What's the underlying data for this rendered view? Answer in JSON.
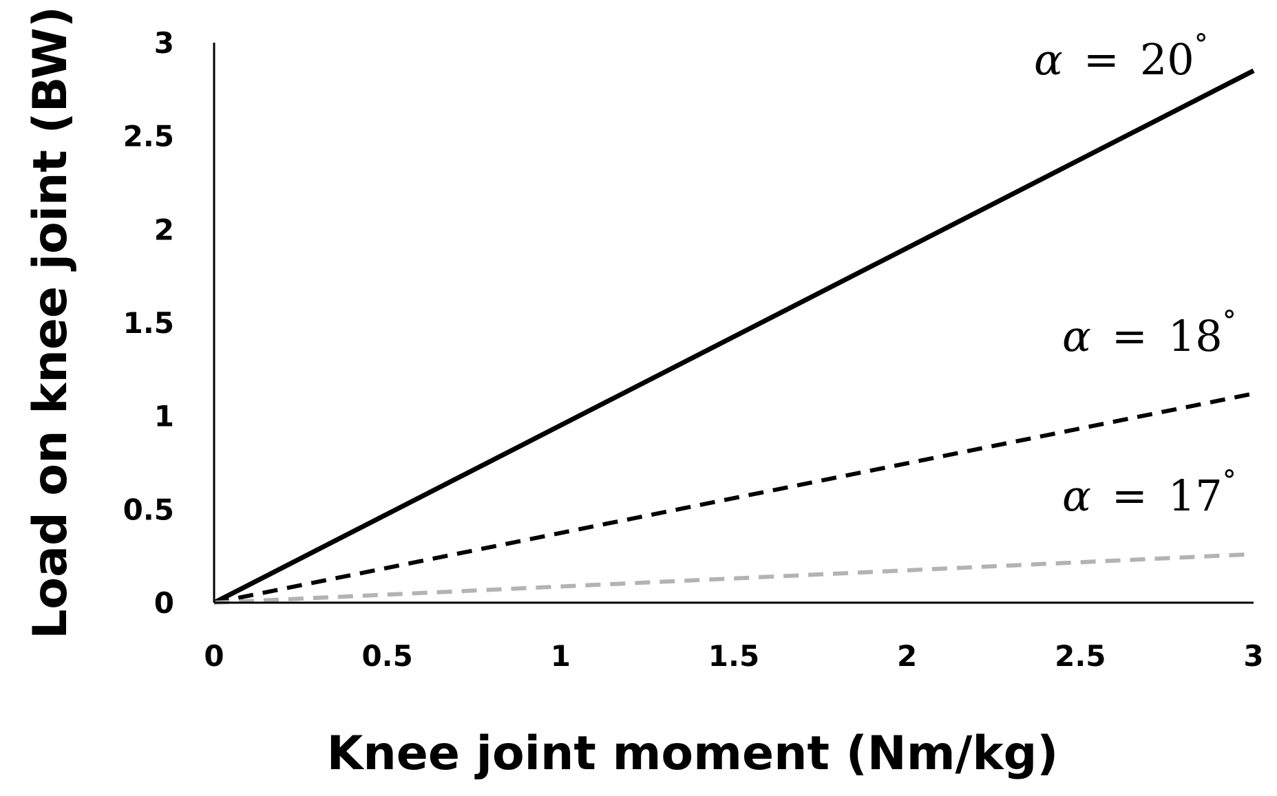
{
  "chart_data": {
    "type": "line",
    "title": "",
    "xlabel": "Knee joint moment (Nm/kg)",
    "ylabel": "Load on knee joint (BW)",
    "xlim": [
      0,
      3
    ],
    "ylim": [
      0,
      3
    ],
    "x_ticks": [
      "0",
      "0.5",
      "1",
      "1.5",
      "2",
      "2.5",
      "3"
    ],
    "y_ticks": [
      "0",
      "0.5",
      "1",
      "1.5",
      "2",
      "2.5",
      "3"
    ],
    "grid": false,
    "legend": "inline labels at right end of each line",
    "series": [
      {
        "name": "α = 20°",
        "label_parts": {
          "symbol": "α",
          "eq": "=",
          "value": "20",
          "unit": "°"
        },
        "style": "solid",
        "color": "#000000",
        "x": [
          0,
          3
        ],
        "y": [
          0,
          2.85
        ]
      },
      {
        "name": "α = 18°",
        "label_parts": {
          "symbol": "α",
          "eq": "=",
          "value": "18",
          "unit": "°"
        },
        "style": "dashed",
        "color": "#000000",
        "x": [
          0,
          3
        ],
        "y": [
          0,
          1.12
        ]
      },
      {
        "name": "α = 17°",
        "label_parts": {
          "symbol": "α",
          "eq": "=",
          "value": "17",
          "unit": "°"
        },
        "style": "dashed",
        "color": "#b3b3b3",
        "x": [
          0,
          3
        ],
        "y": [
          0,
          0.26
        ]
      }
    ]
  }
}
